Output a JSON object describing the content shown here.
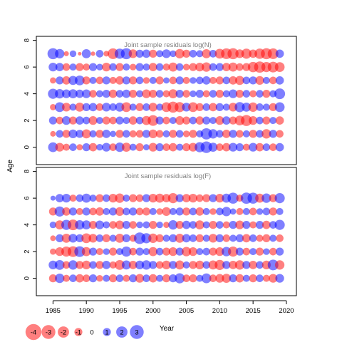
{
  "colors": {
    "negative": "#FF0000",
    "positive": "#0000FF",
    "axis": "#000000",
    "title": "#808080"
  },
  "chart_data": [
    {
      "type": "scatter",
      "title": "Joint sample residuals log(N)",
      "xlabel": "",
      "ylabel": "Age",
      "xlim": [
        1982.5,
        2021.5
      ],
      "ylim": [
        -1.3,
        8.3
      ],
      "yticks": [
        0,
        2,
        4,
        6,
        8
      ],
      "ages": [
        0,
        1,
        2,
        3,
        4,
        5,
        6,
        7
      ],
      "years": [
        1985,
        1986,
        1987,
        1988,
        1989,
        1990,
        1991,
        1992,
        1993,
        1994,
        1995,
        1996,
        1997,
        1998,
        1999,
        2000,
        2001,
        2002,
        2003,
        2004,
        2005,
        2006,
        2007,
        2008,
        2009,
        2010,
        2011,
        2012,
        2013,
        2014,
        2015,
        2016,
        2017,
        2018,
        2019
      ],
      "residuals": [
        [
          1.5,
          -1.2,
          -0.8,
          0.9,
          -0.6,
          1.0,
          -1.1,
          0.7,
          1.2,
          -0.9,
          1.4,
          -1.3,
          0.8,
          -1.0,
          0.6,
          -1.2,
          1.0,
          -0.9,
          -1.1,
          0.8,
          -1.0,
          -1.2,
          1.6,
          2.1,
          1.3,
          -0.9,
          -1.1,
          1.2,
          1.0,
          -0.8,
          1.2,
          -1.1,
          0.9,
          -0.9,
          1.1
        ],
        [
          -0.5,
          0.9,
          -1.0,
          1.2,
          1.0,
          -1.3,
          0.8,
          -1.0,
          1.1,
          0.6,
          -1.0,
          0.9,
          -0.8,
          -0.9,
          1.0,
          -1.2,
          -0.9,
          0.8,
          -1.0,
          0.9,
          -0.7,
          -1.0,
          0.8,
          2.0,
          1.4,
          0.9,
          -1.1,
          1.0,
          -0.9,
          0.8,
          -1.0,
          0.9,
          -1.4,
          1.0,
          -0.9
        ],
        [
          1.0,
          -0.9,
          1.2,
          -1.0,
          1.1,
          0.9,
          -1.2,
          0.8,
          -1.0,
          -0.9,
          1.0,
          0.8,
          -1.1,
          0.9,
          -1.3,
          -1.8,
          1.0,
          -0.9,
          0.8,
          -1.2,
          -1.0,
          0.9,
          -1.1,
          1.0,
          0.8,
          -1.2,
          1.1,
          -1.0,
          -1.5,
          -1.9,
          -1.2,
          0.9,
          -1.0,
          0.8,
          -1.1
        ],
        [
          -0.6,
          1.5,
          -1.2,
          0.8,
          -1.3,
          1.0,
          1.1,
          -0.9,
          1.2,
          0.9,
          1.3,
          -1.5,
          0.8,
          -1.0,
          0.9,
          -1.2,
          0.8,
          -1.5,
          -1.9,
          -1.6,
          1.2,
          -1.5,
          -1.0,
          0.9,
          -1.1,
          1.0,
          0.8,
          -1.2,
          1.6,
          1.3,
          -1.4,
          0.9,
          0.8,
          -1.0,
          1.5
        ],
        [
          1.6,
          1.4,
          1.2,
          1.3,
          1.1,
          1.2,
          -0.9,
          0.8,
          1.0,
          -1.1,
          0.9,
          1.1,
          -1.0,
          0.8,
          -1.2,
          -1.0,
          0.9,
          -0.8,
          -1.3,
          1.0,
          -0.9,
          0.7,
          1.0,
          -0.8,
          0.9,
          -1.0,
          0.8,
          1.2,
          -1.0,
          0.9,
          -0.8,
          0.9,
          -1.0,
          0.8,
          1.8
        ],
        [
          -0.6,
          1.0,
          -1.1,
          1.3,
          1.5,
          -1.0,
          0.8,
          -0.9,
          1.0,
          -0.8,
          -1.1,
          1.0,
          -1.0,
          0.9,
          -0.7,
          0.8,
          -1.0,
          0.6,
          -0.9,
          1.0,
          -0.8,
          0.7,
          0.9,
          1.1,
          -0.8,
          -1.0,
          0.9,
          -1.1,
          -1.3,
          0.9,
          1.0,
          -1.2,
          0.8,
          -0.9,
          1.1
        ],
        [
          1.2,
          1.1,
          -0.9,
          0.8,
          -1.0,
          -0.8,
          1.0,
          0.7,
          -1.2,
          0.9,
          -1.0,
          0.8,
          -0.7,
          1.0,
          0.8,
          -1.1,
          0.9,
          -0.8,
          -1.3,
          0.9,
          -0.7,
          -1.0,
          -1.2,
          -1.4,
          0.9,
          1.0,
          -1.1,
          -1.3,
          -0.9,
          -1.0,
          -1.7,
          -2.0,
          -1.6,
          -1.8,
          -1.5
        ],
        [
          1.9,
          1.4,
          -0.4,
          0.7,
          -0.2,
          1.3,
          -0.3,
          0.9,
          -0.5,
          -1.8,
          1.6,
          1.9,
          -1.2,
          1.0,
          1.1,
          -1.0,
          0.8,
          1.2,
          0.7,
          -1.4,
          -1.0,
          0.9,
          0.8,
          -1.3,
          0.9,
          -1.5,
          -1.8,
          -1.9,
          -1.2,
          -1.6,
          -1.1,
          -1.7,
          -1.9,
          -1.8,
          1.1
        ]
      ]
    },
    {
      "type": "scatter",
      "title": "Joint sample residuals log(F)",
      "xlabel": "Year",
      "ylabel": "Age",
      "xlim": [
        1982.5,
        2021.5
      ],
      "ylim": [
        -1.3,
        8.3
      ],
      "xticks": [
        1985,
        1990,
        1995,
        2000,
        2005,
        2010,
        2015,
        2020
      ],
      "yticks": [
        0,
        2,
        4,
        6,
        8
      ],
      "ages": [
        0,
        1,
        2,
        3,
        4,
        5,
        6
      ],
      "years": [
        1985,
        1986,
        1987,
        1988,
        1989,
        1990,
        1991,
        1992,
        1993,
        1994,
        1995,
        1996,
        1997,
        1998,
        1999,
        2000,
        2001,
        2002,
        2003,
        2004,
        2005,
        2006,
        2007,
        2008,
        2009,
        2010,
        2011,
        2012,
        2013,
        2014,
        2015,
        2016,
        2017,
        2018,
        2019
      ],
      "residuals": [
        [
          -1.0,
          1.4,
          -0.8,
          0.9,
          -1.1,
          -0.9,
          1.0,
          -0.7,
          0.8,
          -1.0,
          0.9,
          -0.8,
          1.0,
          -1.2,
          0.9,
          -1.1,
          0.8,
          -1.0,
          1.0,
          1.6,
          -0.9,
          -1.0,
          0.8,
          1.5,
          -0.9,
          -1.2,
          -1.3,
          1.0,
          -1.1,
          0.8,
          -1.0,
          0.9,
          -0.8,
          -1.2,
          1.2
        ],
        [
          1.2,
          1.5,
          -0.9,
          1.4,
          -1.0,
          -1.2,
          0.9,
          -1.0,
          1.1,
          -0.8,
          -1.5,
          1.3,
          -1.1,
          1.2,
          1.4,
          1.0,
          -0.9,
          -1.2,
          1.0,
          -1.3,
          0.8,
          -1.0,
          -1.2,
          0.9,
          -1.3,
          -1.6,
          1.0,
          -1.1,
          -1.4,
          1.0,
          -1.1,
          0.9,
          -1.2,
          1.8,
          -1.4
        ],
        [
          -0.6,
          -1.2,
          -1.6,
          -1.8,
          1.8,
          -1.3,
          1.0,
          -0.8,
          0.7,
          -1.0,
          0.8,
          1.6,
          -0.9,
          1.0,
          0.8,
          -1.3,
          0.9,
          -1.0,
          -1.2,
          1.0,
          -1.4,
          -1.2,
          0.8,
          0.9,
          -1.0,
          -1.2,
          1.4,
          -1.6,
          1.0,
          -0.9,
          0.8,
          -1.0,
          0.7,
          -0.9,
          1.0
        ],
        [
          -0.5,
          1.0,
          -1.3,
          1.2,
          1.0,
          -1.5,
          -1.2,
          0.9,
          -1.0,
          0.8,
          -1.3,
          1.0,
          -0.8,
          2.1,
          1.6,
          -1.4,
          -1.0,
          0.8,
          1.0,
          -1.3,
          1.1,
          0.9,
          -1.0,
          0.8,
          -1.2,
          1.0,
          -0.9,
          0.8,
          1.0,
          -1.1,
          0.9,
          -0.8,
          -1.0,
          0.8,
          -0.9
        ],
        [
          0.7,
          -1.3,
          1.6,
          -1.8,
          1.4,
          1.3,
          -1.0,
          1.2,
          0.8,
          -0.9,
          -1.2,
          1.0,
          -0.9,
          0.7,
          0.8,
          -1.0,
          0.7,
          -0.6,
          1.4,
          -1.0,
          1.1,
          0.9,
          -1.3,
          0.8,
          -1.0,
          0.9,
          -0.8,
          1.0,
          -1.2,
          1.0,
          -0.8,
          1.0,
          -1.1,
          0.9,
          1.6
        ],
        [
          -1.0,
          1.6,
          -1.1,
          1.0,
          -0.8,
          1.0,
          -0.9,
          -1.1,
          0.8,
          1.0,
          -1.2,
          0.9,
          1.0,
          -0.9,
          -1.0,
          0.8,
          -0.7,
          -1.2,
          0.8,
          1.0,
          -1.0,
          0.9,
          -1.1,
          0.8,
          -0.7,
          0.9,
          1.4,
          0.6,
          -0.8,
          0.8,
          -0.9,
          0.7,
          0.9,
          -1.0,
          0.8
        ],
        [
          0.4,
          1.1,
          1.2,
          -0.8,
          0.9,
          1.3,
          0.8,
          -1.0,
          0.9,
          -1.2,
          -1.4,
          0.8,
          -1.0,
          -0.9,
          1.0,
          -1.2,
          -1.3,
          -1.1,
          -1.6,
          1.0,
          -1.1,
          -1.2,
          -0.9,
          -1.0,
          1.0,
          -1.2,
          1.3,
          1.9,
          -0.8,
          2.0,
          1.9,
          -1.3,
          1.4,
          -1.0,
          1.6
        ]
      ]
    }
  ],
  "legend": {
    "items": [
      {
        "label": "-4",
        "value": -4
      },
      {
        "label": "-3",
        "value": -3
      },
      {
        "label": "-2",
        "value": -2
      },
      {
        "label": "-1",
        "value": -1
      },
      {
        "label": "0",
        "value": 0
      },
      {
        "label": "1",
        "value": 1
      },
      {
        "label": "2",
        "value": 2
      },
      {
        "label": "3",
        "value": 3
      }
    ]
  }
}
